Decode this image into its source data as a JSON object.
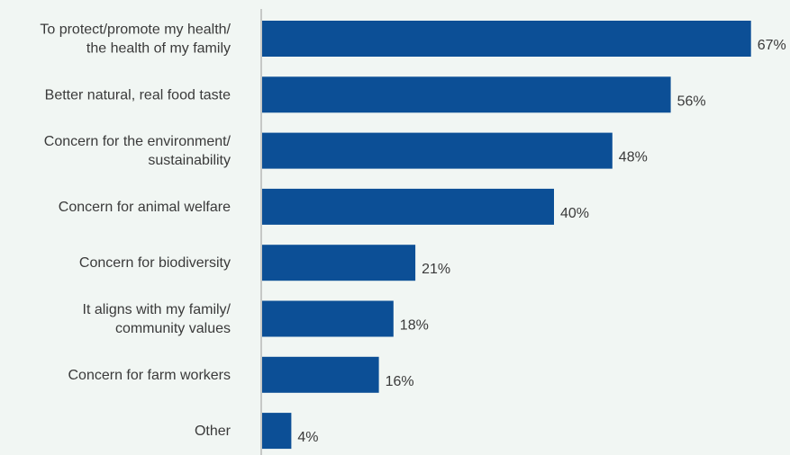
{
  "chart_data": {
    "type": "bar",
    "orientation": "horizontal",
    "categories": [
      [
        "To protect/promote my health/",
        "the health of my family"
      ],
      [
        "Better natural, real food taste"
      ],
      [
        "Concern for the environment/",
        "sustainability"
      ],
      [
        "Concern for animal welfare"
      ],
      [
        "Concern for biodiversity"
      ],
      [
        "It aligns with my family/",
        "community values"
      ],
      [
        "Concern for farm workers"
      ],
      [
        "Other"
      ]
    ],
    "values": [
      67,
      56,
      48,
      40,
      21,
      18,
      16,
      4
    ],
    "value_labels": [
      "67%",
      "56%",
      "48%",
      "40%",
      "21%",
      "18%",
      "16%",
      "4%"
    ],
    "unit": "%",
    "xlim": [
      0,
      100
    ],
    "grid": false,
    "legend": "none",
    "colors": {
      "bar": "#0c4f96",
      "axis": "#9a9a9a",
      "text": "#3a3a3a",
      "background": "#f1f6f3"
    }
  }
}
